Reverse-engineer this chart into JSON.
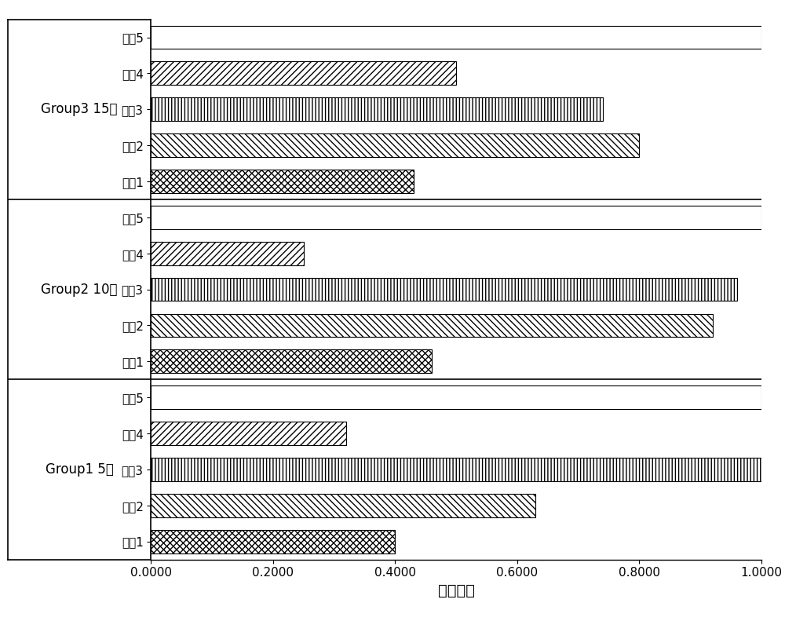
{
  "groups": [
    {
      "label": "Group3 15天",
      "conditions": [
        "工况5",
        "工况4",
        "工况3",
        "工况2",
        "工况1"
      ],
      "values": [
        1.0,
        0.5,
        0.74,
        0.8,
        0.43
      ]
    },
    {
      "label": "Group2 10天",
      "conditions": [
        "工况5",
        "工况4",
        "工况3",
        "工况2",
        "工况1"
      ],
      "values": [
        1.0,
        0.25,
        0.96,
        0.92,
        0.46
      ]
    },
    {
      "label": "Group1 5天",
      "conditions": [
        "工况5",
        "工况4",
        "工况3",
        "工况2",
        "工况1"
      ],
      "values": [
        1.0,
        0.32,
        1.0,
        0.63,
        0.4
      ]
    }
  ],
  "xlabel": "解冻损失",
  "hatch_patterns_list": [
    "===",
    "////",
    "||||",
    "\\\\\\\\",
    "xxxx"
  ],
  "condition_keys": [
    "工况5",
    "工况4",
    "工况3",
    "工况2",
    "工况1"
  ],
  "xlim": [
    0.0,
    1.0
  ],
  "xticks": [
    0.0,
    0.2,
    0.4,
    0.6,
    0.8,
    1.0
  ],
  "xticklabels": [
    "0.0000",
    "0.2000",
    "0.4000",
    "0.6000",
    "0.8000",
    "1.0000"
  ],
  "bar_height": 0.65,
  "xlabel_fontsize": 14,
  "xtick_fontsize": 11,
  "ytick_fontsize": 11,
  "group_label_fontsize": 12,
  "figsize": [
    10.0,
    8.19
  ],
  "dpi": 100
}
